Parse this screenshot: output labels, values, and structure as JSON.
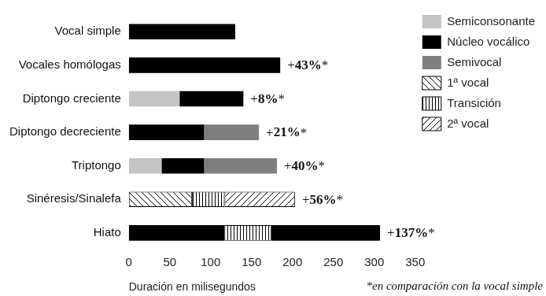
{
  "chart_data": {
    "type": "bar",
    "orientation": "horizontal",
    "stacked": true,
    "categories": [
      "Vocal simple",
      "Vocales homólogas",
      "Diptongo creciente",
      "Diptongo decreciente",
      "Triptongo",
      "Sinéresis/Sinalefa",
      "Hiato"
    ],
    "series": [
      {
        "name": "Semiconsonante",
        "color": "#c4c4c4",
        "values": [
          null,
          null,
          62,
          null,
          40,
          null,
          null
        ]
      },
      {
        "name": "Núcleo vocálico",
        "color": "#000000",
        "values": [
          130,
          185,
          78,
          92,
          52,
          null,
          117
        ]
      },
      {
        "name": "Semivocal",
        "color": "#7f7f7f",
        "values": [
          null,
          null,
          null,
          67,
          89,
          null,
          null
        ]
      },
      {
        "name": "1ª vocal",
        "color": "#000000",
        "values": [
          null,
          null,
          null,
          null,
          null,
          77,
          null
        ]
      },
      {
        "name": "Transición",
        "color": "#000000",
        "values": [
          null,
          null,
          null,
          null,
          null,
          40,
          57
        ]
      },
      {
        "name": "2ª vocal",
        "color": "#000000",
        "values": [
          null,
          null,
          null,
          null,
          null,
          86,
          null
        ]
      },
      {
        "name": "Núcleo vocálico",
        "color": "#000000",
        "values": [
          null,
          null,
          null,
          null,
          null,
          null,
          133
        ]
      }
    ],
    "annotations": [
      null,
      "+43%*",
      "+8%*",
      "+21%*",
      "+40%*",
      "+56%*",
      "+137%*"
    ],
    "xlabel": "Duración en milisegundos",
    "note": "*en comparación con la vocal simple",
    "xlim": [
      0,
      350
    ],
    "xticks": [
      0,
      50,
      100,
      150,
      200,
      250,
      300,
      350
    ],
    "grid": false,
    "legend": "top right"
  }
}
